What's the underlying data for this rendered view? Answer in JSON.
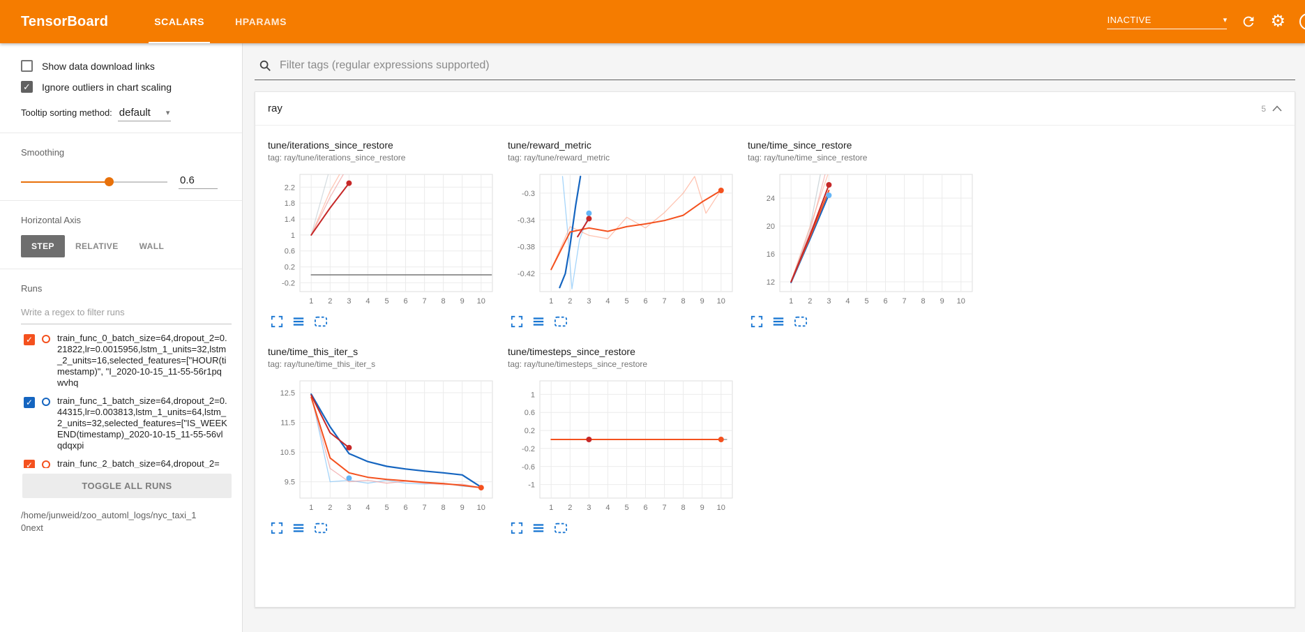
{
  "header": {
    "title": "TensorBoard",
    "tabs": [
      {
        "label": "SCALARS",
        "active": true
      },
      {
        "label": "HPARAMS",
        "active": false
      }
    ],
    "status": "INACTIVE"
  },
  "icons": {
    "check": "✓",
    "caret_down": "▾",
    "question": "?",
    "gear": "⚙"
  },
  "colors": {
    "header_orange": "#f57c00",
    "accent_orange": "#e8710a",
    "run_orange": "#f4511e",
    "run_blue": "#1565c0",
    "smoothed_red": "#c62828",
    "action_icon_blue": "#1976d2"
  },
  "sidebar": {
    "checkboxes": [
      {
        "label": "Show data download links",
        "checked": false
      },
      {
        "label": "Ignore outliers in chart scaling",
        "checked": true
      }
    ],
    "tooltip_sorting": {
      "label": "Tooltip sorting method:",
      "value": "default"
    },
    "smoothing": {
      "label": "Smoothing",
      "value": "0.6"
    },
    "horizontal_axis": {
      "label": "Horizontal Axis",
      "options": [
        "STEP",
        "RELATIVE",
        "WALL"
      ],
      "selected": "STEP"
    },
    "runs": {
      "label": "Runs",
      "filter_placeholder": "Write a regex to filter runs",
      "items": [
        {
          "label": "train_func_0_batch_size=64,dropout_2=0.21822,lr=0.0015956,lstm_1_units=32,lstm_2_units=16,selected_features=[\"HOUR(timestamp)\", \"I_2020-10-15_11-55-56r1pqwvhq",
          "checked": true,
          "color": "#f4511e"
        },
        {
          "label": "train_func_1_batch_size=64,dropout_2=0.44315,lr=0.003813,lstm_1_units=64,lstm_2_units=32,selected_features=[\"IS_WEEKEND(timestamp)_2020-10-15_11-55-56vlqdqxpi",
          "checked": true,
          "color": "#1565c0"
        },
        {
          "label": "train_func_2_batch_size=64,dropout_2=",
          "checked": true,
          "color": "#f4511e"
        }
      ],
      "toggle_all_label": "TOGGLE ALL RUNS",
      "path": "/home/junweid/zoo_automl_logs/nyc_taxi_10next"
    }
  },
  "main": {
    "filter_placeholder": "Filter tags (regular expressions supported)",
    "section": {
      "title": "ray",
      "count": "5"
    }
  },
  "chart_data": [
    {
      "type": "line",
      "title": "tune/iterations_since_restore",
      "tag": "tag: ray/tune/iterations_since_restore",
      "xticks": [
        1,
        2,
        3,
        4,
        5,
        6,
        7,
        8,
        9,
        10
      ],
      "yticks": [
        -0.2,
        0.2,
        0.6,
        1,
        1.4,
        1.8,
        2.2
      ],
      "xlim": [
        0.4,
        10.6
      ],
      "ylim": [
        -0.42,
        2.52
      ],
      "series": [
        {
          "name": "raw faint gray",
          "color": "#b0bec5",
          "opacity": 0.5,
          "width": 1.3,
          "points": [
            [
              1,
              1
            ],
            [
              1.9,
              2.52
            ]
          ]
        },
        {
          "name": "raw faint orange",
          "color": "#ffab91",
          "opacity": 0.65,
          "width": 1.3,
          "points": [
            [
              1,
              1
            ],
            [
              2,
              2.1
            ],
            [
              2.5,
              2.52
            ]
          ]
        },
        {
          "name": "raw faint pink",
          "color": "#ef9a9a",
          "opacity": 0.65,
          "width": 1.3,
          "points": [
            [
              1,
              1
            ],
            [
              2,
              1.95
            ],
            [
              2.7,
              2.52
            ]
          ]
        },
        {
          "name": "zero run",
          "color": "#757575",
          "opacity": 1,
          "width": 1.5,
          "points": [
            [
              1,
              0
            ],
            [
              10.55,
              0
            ]
          ]
        },
        {
          "name": "smoothed red",
          "color": "#c62828",
          "opacity": 1,
          "width": 2,
          "points": [
            [
              1,
              1
            ],
            [
              2,
              1.68
            ],
            [
              3,
              2.3
            ]
          ]
        }
      ],
      "dots": [
        {
          "x": 3,
          "y": 2.3,
          "color": "#c62828"
        }
      ]
    },
    {
      "type": "line",
      "title": "tune/reward_metric",
      "tag": "tag: ray/tune/reward_metric",
      "xticks": [
        1,
        2,
        3,
        4,
        5,
        6,
        7,
        8,
        9,
        10
      ],
      "yticks": [
        -0.42,
        -0.38,
        -0.34,
        -0.3
      ],
      "xlim": [
        0.4,
        10.6
      ],
      "ylim": [
        -0.447,
        -0.272
      ],
      "series": [
        {
          "name": "blue raw",
          "color": "#90caf9",
          "opacity": 0.8,
          "width": 1.3,
          "points": [
            [
              1.6,
              -0.275
            ],
            [
              1.85,
              -0.35
            ],
            [
              2.1,
              -0.443
            ],
            [
              2.5,
              -0.37
            ],
            [
              3,
              -0.331
            ]
          ]
        },
        {
          "name": "orange raw",
          "color": "#ffab91",
          "opacity": 0.7,
          "width": 1.3,
          "points": [
            [
              1,
              -0.414
            ],
            [
              2,
              -0.35
            ],
            [
              3,
              -0.363
            ],
            [
              4,
              -0.368
            ],
            [
              5,
              -0.336
            ],
            [
              6,
              -0.352
            ],
            [
              7,
              -0.329
            ],
            [
              8,
              -0.3
            ],
            [
              8.6,
              -0.275
            ],
            [
              9.2,
              -0.33
            ],
            [
              10,
              -0.295
            ]
          ]
        },
        {
          "name": "blue smoothed",
          "color": "#1565c0",
          "opacity": 1,
          "width": 2.2,
          "points": [
            [
              1.45,
              -0.441
            ],
            [
              1.75,
              -0.42
            ],
            [
              2,
              -0.378
            ],
            [
              2.3,
              -0.318
            ],
            [
              2.55,
              -0.275
            ]
          ]
        },
        {
          "name": "orange smoothed",
          "color": "#f4511e",
          "opacity": 1,
          "width": 2,
          "points": [
            [
              1,
              -0.414
            ],
            [
              2,
              -0.358
            ],
            [
              3,
              -0.352
            ],
            [
              4,
              -0.357
            ],
            [
              5,
              -0.35
            ],
            [
              6,
              -0.346
            ],
            [
              7,
              -0.341
            ],
            [
              8,
              -0.333
            ],
            [
              9,
              -0.313
            ],
            [
              10,
              -0.296
            ]
          ]
        },
        {
          "name": "red smoothed",
          "color": "#c62828",
          "opacity": 1,
          "width": 2,
          "points": [
            [
              2.4,
              -0.365
            ],
            [
              3,
              -0.338
            ]
          ]
        }
      ],
      "dots": [
        {
          "x": 3,
          "y": -0.338,
          "color": "#c62828"
        },
        {
          "x": 3,
          "y": -0.33,
          "color": "#64b5f6"
        },
        {
          "x": 10,
          "y": -0.296,
          "color": "#f4511e"
        }
      ]
    },
    {
      "type": "line",
      "title": "tune/time_since_restore",
      "tag": "tag: ray/tune/time_since_restore",
      "xticks": [
        1,
        2,
        3,
        4,
        5,
        6,
        7,
        8,
        9,
        10
      ],
      "yticks": [
        12,
        16,
        20,
        24
      ],
      "xlim": [
        0.4,
        10.6
      ],
      "ylim": [
        10.6,
        27.4
      ],
      "series": [
        {
          "name": "faint gray",
          "color": "#b0bec5",
          "opacity": 0.6,
          "width": 1.3,
          "points": [
            [
              1,
              11.9
            ],
            [
              2,
              19.8
            ],
            [
              2.55,
              27.4
            ]
          ]
        },
        {
          "name": "faint pink",
          "color": "#ef9a9a",
          "opacity": 0.6,
          "width": 1.3,
          "points": [
            [
              1,
              12
            ],
            [
              2,
              19.2
            ],
            [
              2.8,
              27.4
            ]
          ]
        },
        {
          "name": "faint orange",
          "color": "#ffab91",
          "opacity": 0.6,
          "width": 1.3,
          "points": [
            [
              1,
              12.1
            ],
            [
              2,
              19.9
            ],
            [
              2.95,
              27.4
            ]
          ]
        },
        {
          "name": "blue smoothed",
          "color": "#1565c0",
          "opacity": 1,
          "width": 2,
          "points": [
            [
              1,
              11.9
            ],
            [
              2,
              18.1
            ],
            [
              3,
              24.5
            ]
          ]
        },
        {
          "name": "orange smoothed",
          "color": "#f4511e",
          "opacity": 1,
          "width": 2,
          "points": [
            [
              1,
              12
            ],
            [
              2,
              18.4
            ],
            [
              3,
              25.1
            ]
          ]
        },
        {
          "name": "red smoothed",
          "color": "#c62828",
          "opacity": 1,
          "width": 2,
          "points": [
            [
              1,
              12
            ],
            [
              2,
              18.7
            ],
            [
              3,
              25.9
            ]
          ]
        }
      ],
      "dots": [
        {
          "x": 3,
          "y": 25.9,
          "color": "#c62828"
        },
        {
          "x": 3,
          "y": 24.4,
          "color": "#64b5f6"
        }
      ]
    },
    {
      "type": "line",
      "title": "tune/time_this_iter_s",
      "tag": "tag: ray/tune/time_this_iter_s",
      "xticks": [
        1,
        2,
        3,
        4,
        5,
        6,
        7,
        8,
        9,
        10
      ],
      "yticks": [
        9.5,
        10.5,
        11.5,
        12.5
      ],
      "xlim": [
        0.4,
        10.6
      ],
      "ylim": [
        8.95,
        12.9
      ],
      "series": [
        {
          "name": "light blue raw",
          "color": "#90caf9",
          "opacity": 0.8,
          "width": 1.3,
          "points": [
            [
              1,
              12.45
            ],
            [
              2,
              9.5
            ],
            [
              3,
              9.55
            ],
            [
              4,
              9.45
            ],
            [
              5,
              9.55
            ],
            [
              6,
              9.45
            ],
            [
              7,
              9.42
            ],
            [
              8,
              9.45
            ],
            [
              9,
              9.35
            ],
            [
              10,
              9.3
            ]
          ]
        },
        {
          "name": "pink raw",
          "color": "#ef9a9a",
          "opacity": 0.7,
          "width": 1.3,
          "points": [
            [
              1,
              12.35
            ],
            [
              2,
              9.95
            ],
            [
              3,
              9.5
            ],
            [
              4,
              9.55
            ],
            [
              5,
              9.45
            ],
            [
              6,
              9.52
            ],
            [
              7,
              9.45
            ],
            [
              8,
              9.4
            ],
            [
              9,
              9.42
            ],
            [
              10,
              9.3
            ]
          ]
        },
        {
          "name": "blue smoothed",
          "color": "#1565c0",
          "opacity": 1,
          "width": 2.2,
          "points": [
            [
              1,
              12.45
            ],
            [
              2,
              11.35
            ],
            [
              3,
              10.45
            ],
            [
              4,
              10.18
            ],
            [
              5,
              10.02
            ],
            [
              6,
              9.93
            ],
            [
              7,
              9.86
            ],
            [
              8,
              9.8
            ],
            [
              9,
              9.73
            ],
            [
              10,
              9.32
            ]
          ]
        },
        {
          "name": "orange smoothed",
          "color": "#f4511e",
          "opacity": 1,
          "width": 2,
          "points": [
            [
              1,
              12.35
            ],
            [
              2,
              10.3
            ],
            [
              3,
              9.8
            ],
            [
              4,
              9.65
            ],
            [
              5,
              9.58
            ],
            [
              6,
              9.53
            ],
            [
              7,
              9.48
            ],
            [
              8,
              9.44
            ],
            [
              9,
              9.38
            ],
            [
              10,
              9.3
            ]
          ]
        },
        {
          "name": "red smoothed",
          "color": "#c62828",
          "opacity": 1,
          "width": 2,
          "points": [
            [
              1,
              12.42
            ],
            [
              2,
              11.15
            ],
            [
              3,
              10.65
            ]
          ]
        }
      ],
      "dots": [
        {
          "x": 3,
          "y": 10.65,
          "color": "#c62828"
        },
        {
          "x": 3,
          "y": 9.62,
          "color": "#64b5f6"
        },
        {
          "x": 10,
          "y": 9.3,
          "color": "#f4511e"
        }
      ]
    },
    {
      "type": "line",
      "title": "tune/timesteps_since_restore",
      "tag": "tag: ray/tune/timesteps_since_restore",
      "xticks": [
        1,
        2,
        3,
        4,
        5,
        6,
        7,
        8,
        9,
        10
      ],
      "yticks": [
        -1,
        -0.6,
        -0.2,
        0.2,
        0.6,
        1
      ],
      "xlim": [
        0.4,
        10.6
      ],
      "ylim": [
        -1.3,
        1.3
      ],
      "series": [
        {
          "name": "gray run",
          "color": "#9e9e9e",
          "opacity": 1,
          "width": 1.5,
          "points": [
            [
              1,
              0
            ],
            [
              10.3,
              0
            ]
          ]
        },
        {
          "name": "orange smoothed",
          "color": "#f4511e",
          "opacity": 1,
          "width": 2,
          "points": [
            [
              1,
              0
            ],
            [
              10,
              0
            ]
          ]
        }
      ],
      "dots": [
        {
          "x": 3,
          "y": 0,
          "color": "#c62828"
        },
        {
          "x": 10,
          "y": 0,
          "color": "#f4511e"
        }
      ]
    }
  ]
}
